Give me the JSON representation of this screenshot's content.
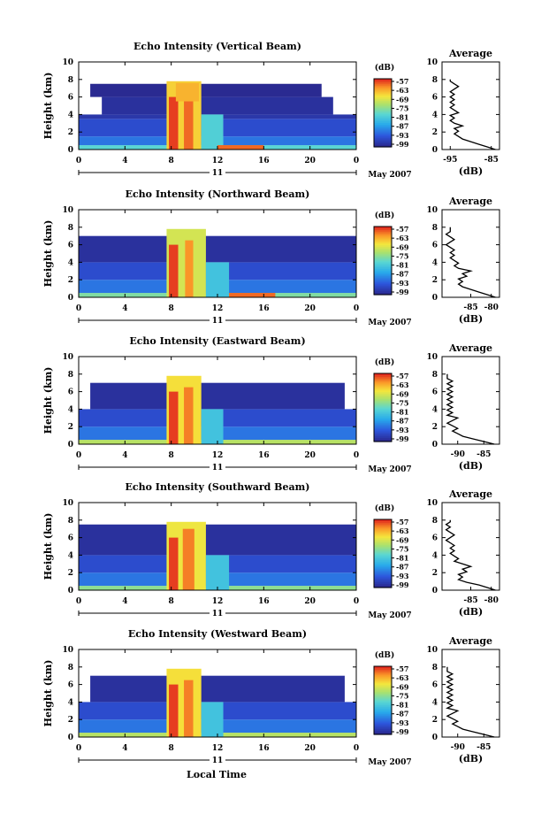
{
  "figure": {
    "xlabel": "Local Time",
    "date_label": "May 2007",
    "day_label": "11"
  },
  "chart_data": [
    {
      "type": "heatmap",
      "title": "Echo Intensity (Vertical Beam)",
      "ylabel": "Height (km)",
      "x_ticks": [
        "0",
        "4",
        "8",
        "12",
        "16",
        "20",
        "0"
      ],
      "y_ticks": [
        "0",
        "2",
        "4",
        "6",
        "8",
        "10"
      ],
      "xlim": [
        0,
        24
      ],
      "ylim": [
        0,
        10
      ],
      "colorbar": {
        "label": "(dB)",
        "ticks": [
          "-57",
          "-63",
          "-69",
          "-75",
          "-81",
          "-87",
          "-93",
          "-99"
        ]
      },
      "profile": {
        "title": "Average",
        "xlabel": "(dB)",
        "x_ticks": [
          "-95",
          "-85"
        ],
        "xlim": [
          -97,
          -83
        ],
        "y_ticks": [
          "0",
          "2",
          "4",
          "6",
          "8",
          "10"
        ],
        "heights": [
          0.0,
          0.3,
          0.6,
          0.9,
          1.2,
          1.5,
          1.8,
          2.1,
          2.4,
          2.7,
          3.0,
          3.3,
          3.6,
          3.9,
          4.2,
          4.5,
          4.8,
          5.1,
          5.4,
          5.7,
          6.0,
          6.3,
          6.6,
          6.9,
          7.2,
          7.5,
          7.8,
          8.0
        ],
        "values": [
          -84,
          -86,
          -88,
          -90,
          -92,
          -93,
          -94,
          -93,
          -94,
          -92,
          -94,
          -95,
          -94,
          -95,
          -93,
          -94,
          -95,
          -94,
          -95,
          -94,
          -95,
          -94,
          -95,
          -94,
          -93,
          -94,
          -95,
          -95
        ]
      },
      "bands": [
        {
          "z_from": 0.0,
          "z_to": 0.5,
          "t_from": 0,
          "t_to": 24,
          "dB": -79
        },
        {
          "z_from": 0.5,
          "z_to": 1.5,
          "t_from": 0,
          "t_to": 24,
          "dB": -90
        },
        {
          "z_from": 1.5,
          "z_to": 3.5,
          "t_from": 0,
          "t_to": 24,
          "dB": -94
        },
        {
          "z_from": 3.5,
          "z_to": 4.0,
          "t_from": 0,
          "t_to": 24,
          "dB": -97
        },
        {
          "z_from": 4.0,
          "z_to": 6.0,
          "t_from": 2,
          "t_to": 22,
          "dB": -98
        },
        {
          "z_from": 6.0,
          "z_to": 7.5,
          "t_from": 1,
          "t_to": 21,
          "dB": -99
        },
        {
          "z_from": 0.0,
          "z_to": 7.8,
          "t_from": 7.6,
          "t_to": 10.6,
          "dB": -66
        },
        {
          "z_from": 0.0,
          "z_to": 6.0,
          "t_from": 7.8,
          "t_to": 8.6,
          "dB": -58
        },
        {
          "z_from": 0.0,
          "z_to": 7.0,
          "t_from": 9.1,
          "t_to": 9.9,
          "dB": -60
        },
        {
          "z_from": 5.5,
          "z_to": 7.6,
          "t_from": 8.4,
          "t_to": 10.4,
          "dB": -64
        },
        {
          "z_from": 0.0,
          "z_to": 4.0,
          "t_from": 10.6,
          "t_to": 12.5,
          "dB": -80
        },
        {
          "z_from": 0.0,
          "z_to": 0.5,
          "t_from": 12,
          "t_to": 16,
          "dB": -60
        }
      ]
    },
    {
      "type": "heatmap",
      "title": "Echo Intensity (Northward Beam)",
      "ylabel": "Height (km)",
      "x_ticks": [
        "0",
        "4",
        "8",
        "12",
        "16",
        "20",
        "0"
      ],
      "y_ticks": [
        "0",
        "2",
        "4",
        "6",
        "8",
        "10"
      ],
      "xlim": [
        0,
        24
      ],
      "ylim": [
        0,
        10
      ],
      "colorbar": {
        "label": "(dB)",
        "ticks": [
          "-57",
          "-63",
          "-69",
          "-75",
          "-81",
          "-87",
          "-93",
          "-99"
        ]
      },
      "profile": {
        "title": "Average",
        "xlabel": "(dB)",
        "x_ticks": [
          "-85",
          "-80"
        ],
        "xlim": [
          -92,
          -78
        ],
        "y_ticks": [
          "0",
          "2",
          "4",
          "6",
          "8",
          "10"
        ],
        "heights": [
          0.0,
          0.3,
          0.6,
          0.9,
          1.2,
          1.5,
          1.8,
          2.1,
          2.4,
          2.7,
          3.0,
          3.3,
          3.6,
          3.9,
          4.2,
          4.5,
          4.8,
          5.1,
          5.4,
          5.7,
          6.0,
          6.3,
          6.6,
          6.9,
          7.2,
          7.5,
          7.8,
          8.0
        ],
        "values": [
          -79,
          -81,
          -83,
          -85,
          -87,
          -88,
          -87,
          -88,
          -86,
          -87,
          -85,
          -88,
          -89,
          -88,
          -89,
          -90,
          -89,
          -90,
          -89,
          -90,
          -91,
          -90,
          -89,
          -90,
          -91,
          -90,
          -90,
          -90
        ]
      },
      "bands": [
        {
          "z_from": 0.0,
          "z_to": 0.5,
          "t_from": 0,
          "t_to": 24,
          "dB": -76
        },
        {
          "z_from": 0.5,
          "z_to": 2.0,
          "t_from": 0,
          "t_to": 24,
          "dB": -90
        },
        {
          "z_from": 2.0,
          "z_to": 4.0,
          "t_from": 0,
          "t_to": 24,
          "dB": -94
        },
        {
          "z_from": 4.0,
          "z_to": 7.0,
          "t_from": 0,
          "t_to": 24,
          "dB": -98
        },
        {
          "z_from": 0.0,
          "z_to": 7.8,
          "t_from": 7.6,
          "t_to": 11.0,
          "dB": -70
        },
        {
          "z_from": 0.0,
          "z_to": 6.0,
          "t_from": 7.8,
          "t_to": 8.6,
          "dB": -58
        },
        {
          "z_from": 0.0,
          "z_to": 6.5,
          "t_from": 9.2,
          "t_to": 9.9,
          "dB": -62
        },
        {
          "z_from": 0.0,
          "z_to": 4.0,
          "t_from": 11,
          "t_to": 13,
          "dB": -82
        },
        {
          "z_from": 0.0,
          "z_to": 0.5,
          "t_from": 13,
          "t_to": 17,
          "dB": -60
        }
      ]
    },
    {
      "type": "heatmap",
      "title": "Echo Intensity (Eastward Beam)",
      "ylabel": "Height (km)",
      "x_ticks": [
        "0",
        "4",
        "8",
        "12",
        "16",
        "20",
        "0"
      ],
      "y_ticks": [
        "0",
        "2",
        "4",
        "6",
        "8",
        "10"
      ],
      "xlim": [
        0,
        24
      ],
      "ylim": [
        0,
        10
      ],
      "colorbar": {
        "label": "(dB)",
        "ticks": [
          "-57",
          "-63",
          "-69",
          "-75",
          "-81",
          "-87",
          "-93",
          "-99"
        ]
      },
      "profile": {
        "title": "Average",
        "xlabel": "(dB)",
        "x_ticks": [
          "-90",
          "-85"
        ],
        "xlim": [
          -93,
          -82
        ],
        "y_ticks": [
          "0",
          "2",
          "4",
          "6",
          "8",
          "10"
        ],
        "heights": [
          0.0,
          0.3,
          0.6,
          0.9,
          1.2,
          1.5,
          1.8,
          2.1,
          2.4,
          2.7,
          3.0,
          3.3,
          3.6,
          3.9,
          4.2,
          4.5,
          4.8,
          5.1,
          5.4,
          5.7,
          6.0,
          6.3,
          6.6,
          6.9,
          7.2,
          7.5,
          7.8,
          8.0
        ],
        "values": [
          -83,
          -85,
          -87,
          -89,
          -90,
          -91,
          -90,
          -91,
          -92,
          -91,
          -90,
          -92,
          -91,
          -92,
          -91,
          -92,
          -91,
          -92,
          -91,
          -92,
          -91,
          -92,
          -91,
          -92,
          -91,
          -92,
          -92,
          -92
        ]
      },
      "bands": [
        {
          "z_from": 0.0,
          "z_to": 0.5,
          "t_from": 0,
          "t_to": 24,
          "dB": -72
        },
        {
          "z_from": 0.5,
          "z_to": 2.0,
          "t_from": 0,
          "t_to": 24,
          "dB": -90
        },
        {
          "z_from": 2.0,
          "z_to": 4.0,
          "t_from": 0,
          "t_to": 24,
          "dB": -94
        },
        {
          "z_from": 4.0,
          "z_to": 7.0,
          "t_from": 1,
          "t_to": 23,
          "dB": -98
        },
        {
          "z_from": 0.0,
          "z_to": 7.8,
          "t_from": 7.6,
          "t_to": 10.6,
          "dB": -67
        },
        {
          "z_from": 0.0,
          "z_to": 6.0,
          "t_from": 7.8,
          "t_to": 8.6,
          "dB": -58
        },
        {
          "z_from": 0.0,
          "z_to": 6.5,
          "t_from": 9.1,
          "t_to": 9.9,
          "dB": -61
        },
        {
          "z_from": 0.0,
          "z_to": 4.0,
          "t_from": 10.6,
          "t_to": 12.5,
          "dB": -82
        }
      ]
    },
    {
      "type": "heatmap",
      "title": "Echo Intensity (Southward Beam)",
      "ylabel": "Height (km)",
      "x_ticks": [
        "0",
        "4",
        "8",
        "12",
        "16",
        "20",
        "0"
      ],
      "y_ticks": [
        "0",
        "2",
        "4",
        "6",
        "8",
        "10"
      ],
      "xlim": [
        0,
        24
      ],
      "ylim": [
        0,
        10
      ],
      "colorbar": {
        "label": "(dB)",
        "ticks": [
          "-57",
          "-63",
          "-69",
          "-75",
          "-81",
          "-87",
          "-93",
          "-99"
        ]
      },
      "profile": {
        "title": "Average",
        "xlabel": "(dB)",
        "x_ticks": [
          "-85",
          "-80"
        ],
        "xlim": [
          -92,
          -78
        ],
        "y_ticks": [
          "0",
          "2",
          "4",
          "6",
          "8",
          "10"
        ],
        "heights": [
          0.0,
          0.3,
          0.6,
          0.9,
          1.2,
          1.5,
          1.8,
          2.1,
          2.4,
          2.7,
          3.0,
          3.3,
          3.6,
          3.9,
          4.2,
          4.5,
          4.8,
          5.1,
          5.4,
          5.7,
          6.0,
          6.3,
          6.6,
          6.9,
          7.2,
          7.5,
          7.8,
          8.0
        ],
        "values": [
          -79,
          -81,
          -83,
          -86,
          -88,
          -87,
          -88,
          -86,
          -87,
          -85,
          -87,
          -89,
          -88,
          -89,
          -90,
          -89,
          -90,
          -89,
          -90,
          -91,
          -90,
          -89,
          -90,
          -91,
          -90,
          -91,
          -90,
          -90
        ]
      },
      "bands": [
        {
          "z_from": 0.0,
          "z_to": 0.5,
          "t_from": 0,
          "t_to": 24,
          "dB": -75
        },
        {
          "z_from": 0.5,
          "z_to": 2.0,
          "t_from": 0,
          "t_to": 24,
          "dB": -90
        },
        {
          "z_from": 2.0,
          "z_to": 4.0,
          "t_from": 0,
          "t_to": 24,
          "dB": -94
        },
        {
          "z_from": 4.0,
          "z_to": 7.5,
          "t_from": 0,
          "t_to": 24,
          "dB": -98
        },
        {
          "z_from": 0.0,
          "z_to": 7.8,
          "t_from": 7.6,
          "t_to": 11.0,
          "dB": -68
        },
        {
          "z_from": 0.0,
          "z_to": 6.0,
          "t_from": 7.8,
          "t_to": 8.6,
          "dB": -58
        },
        {
          "z_from": 0.0,
          "z_to": 7.0,
          "t_from": 9.0,
          "t_to": 10.0,
          "dB": -61
        },
        {
          "z_from": 0.0,
          "z_to": 4.0,
          "t_from": 11,
          "t_to": 13,
          "dB": -82
        }
      ]
    },
    {
      "type": "heatmap",
      "title": "Echo Intensity (Westward Beam)",
      "ylabel": "Height (km)",
      "x_ticks": [
        "0",
        "4",
        "8",
        "12",
        "16",
        "20",
        "0"
      ],
      "y_ticks": [
        "0",
        "2",
        "4",
        "6",
        "8",
        "10"
      ],
      "xlim": [
        0,
        24
      ],
      "ylim": [
        0,
        10
      ],
      "colorbar": {
        "label": "(dB)",
        "ticks": [
          "-57",
          "-63",
          "-69",
          "-75",
          "-81",
          "-87",
          "-93",
          "-99"
        ]
      },
      "profile": {
        "title": "Average",
        "xlabel": "(dB)",
        "x_ticks": [
          "-90",
          "-85"
        ],
        "xlim": [
          -93,
          -82
        ],
        "y_ticks": [
          "0",
          "2",
          "4",
          "6",
          "8",
          "10"
        ],
        "heights": [
          0.0,
          0.3,
          0.6,
          0.9,
          1.2,
          1.5,
          1.8,
          2.1,
          2.4,
          2.7,
          3.0,
          3.3,
          3.6,
          3.9,
          4.2,
          4.5,
          4.8,
          5.1,
          5.4,
          5.7,
          6.0,
          6.3,
          6.6,
          6.9,
          7.2,
          7.5,
          7.8,
          8.0
        ],
        "values": [
          -83,
          -85,
          -87,
          -89,
          -90,
          -91,
          -90,
          -91,
          -92,
          -91,
          -90,
          -92,
          -91,
          -92,
          -91,
          -92,
          -91,
          -92,
          -91,
          -92,
          -91,
          -92,
          -91,
          -92,
          -91,
          -92,
          -92,
          -92
        ]
      },
      "bands": [
        {
          "z_from": 0.0,
          "z_to": 0.5,
          "t_from": 0,
          "t_to": 24,
          "dB": -72
        },
        {
          "z_from": 0.5,
          "z_to": 2.0,
          "t_from": 0,
          "t_to": 24,
          "dB": -90
        },
        {
          "z_from": 2.0,
          "z_to": 4.0,
          "t_from": 0,
          "t_to": 24,
          "dB": -94
        },
        {
          "z_from": 4.0,
          "z_to": 7.0,
          "t_from": 1,
          "t_to": 23,
          "dB": -98
        },
        {
          "z_from": 0.0,
          "z_to": 7.8,
          "t_from": 7.6,
          "t_to": 10.6,
          "dB": -67
        },
        {
          "z_from": 0.0,
          "z_to": 6.0,
          "t_from": 7.8,
          "t_to": 8.6,
          "dB": -58
        },
        {
          "z_from": 0.0,
          "z_to": 6.5,
          "t_from": 9.1,
          "t_to": 9.9,
          "dB": -61
        },
        {
          "z_from": 0.0,
          "z_to": 4.0,
          "t_from": 10.6,
          "t_to": 12.5,
          "dB": -82
        }
      ]
    }
  ]
}
